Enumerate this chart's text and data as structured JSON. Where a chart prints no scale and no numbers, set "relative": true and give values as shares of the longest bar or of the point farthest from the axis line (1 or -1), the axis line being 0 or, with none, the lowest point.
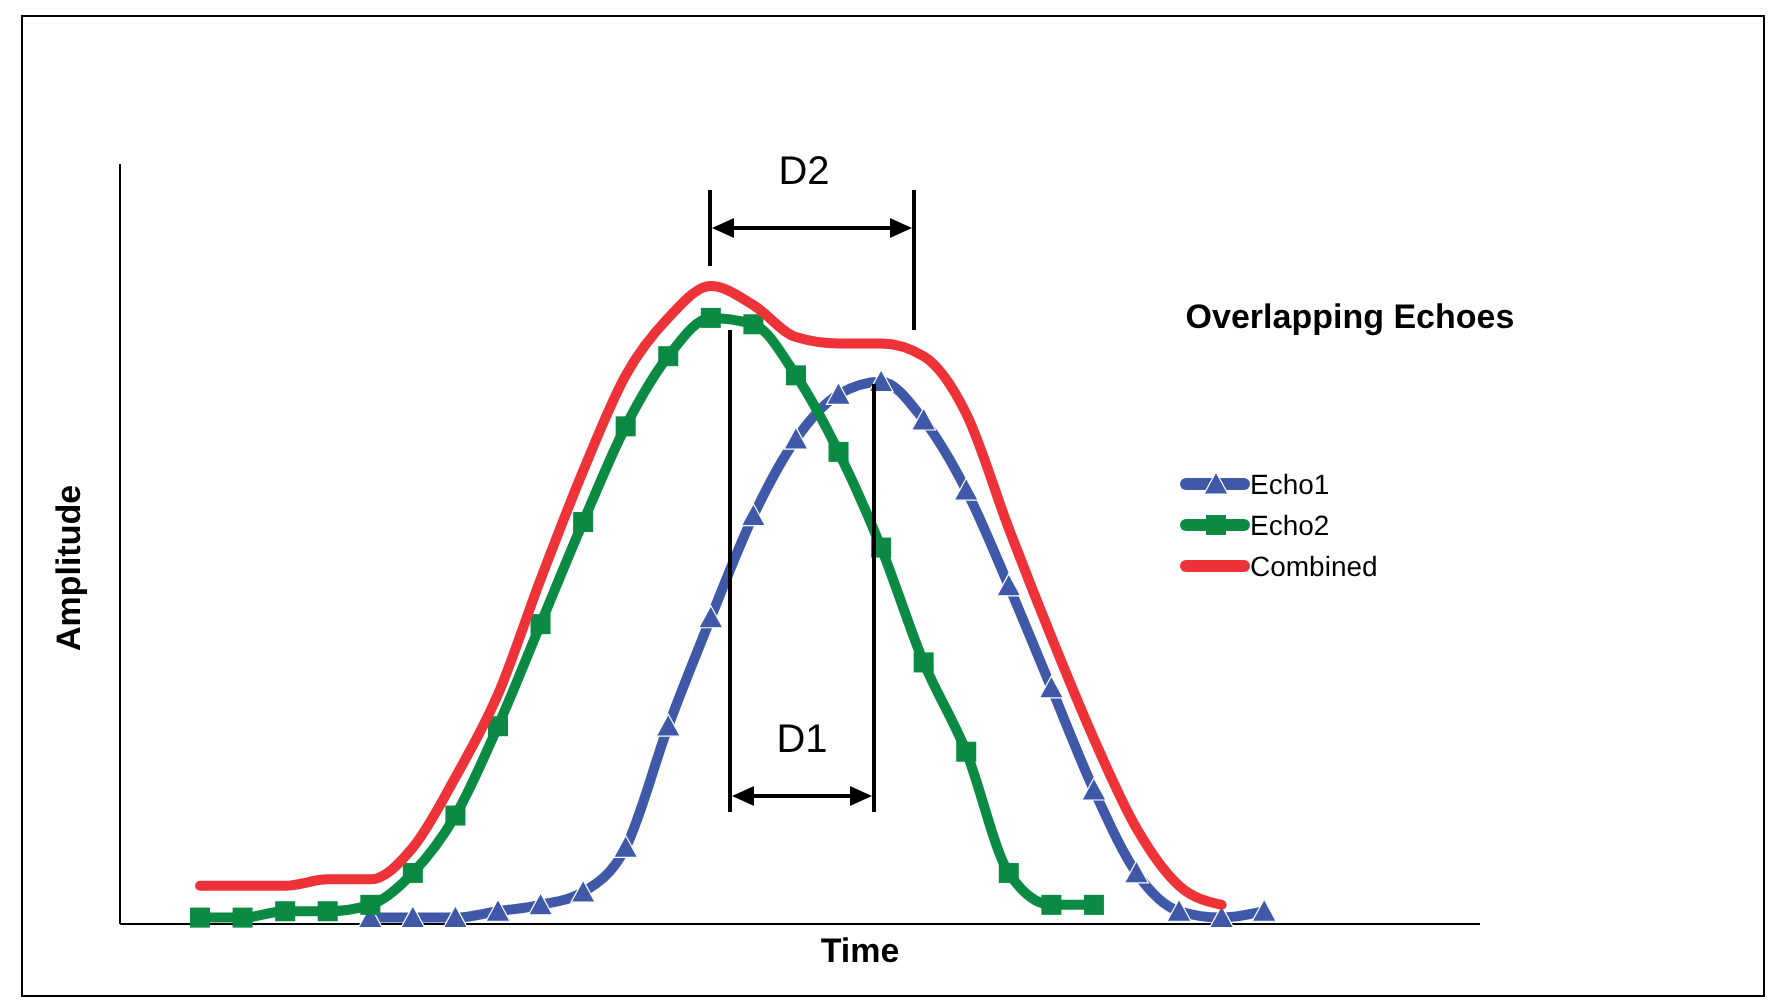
{
  "chart_data": {
    "type": "line",
    "title": "Overlapping Echoes",
    "xlabel": "Time",
    "ylabel": "Amplitude",
    "relative": true,
    "legend": "right",
    "annotations": [
      "D1",
      "D2"
    ],
    "categories": [
      null,
      null,
      null,
      null,
      null,
      null,
      null,
      null,
      null,
      null,
      null,
      null,
      null,
      null,
      null,
      null,
      null,
      null,
      null,
      null,
      null,
      null,
      null,
      null,
      null,
      null
    ],
    "series": [
      {
        "name": "Echo1",
        "color": "#3f58a8",
        "marker": "triangle",
        "values": [
          null,
          null,
          null,
          null,
          0.01,
          0.01,
          0.01,
          0.02,
          0.03,
          0.05,
          0.12,
          0.31,
          0.48,
          0.64,
          0.76,
          0.83,
          0.85,
          0.79,
          0.68,
          0.53,
          0.37,
          0.21,
          0.08,
          0.02,
          0.01,
          0.02
        ]
      },
      {
        "name": "Echo2",
        "color": "#0a8a43",
        "marker": "square",
        "values": [
          0.01,
          0.01,
          0.02,
          0.02,
          0.03,
          0.08,
          0.17,
          0.31,
          0.47,
          0.63,
          0.78,
          0.89,
          0.95,
          0.94,
          0.86,
          0.74,
          0.59,
          0.41,
          0.27,
          0.08,
          0.03,
          0.03,
          null,
          null,
          null,
          null
        ]
      },
      {
        "name": "Combined",
        "color": "#ee3338",
        "marker": "none",
        "values": [
          0.06,
          0.06,
          0.06,
          0.07,
          0.07,
          0.12,
          0.23,
          0.36,
          0.54,
          0.71,
          0.86,
          0.95,
          1,
          0.97,
          0.92,
          0.91,
          0.91,
          0.89,
          0.8,
          0.62,
          0.45,
          0.29,
          0.15,
          0.06,
          0.03,
          null
        ]
      }
    ]
  }
}
